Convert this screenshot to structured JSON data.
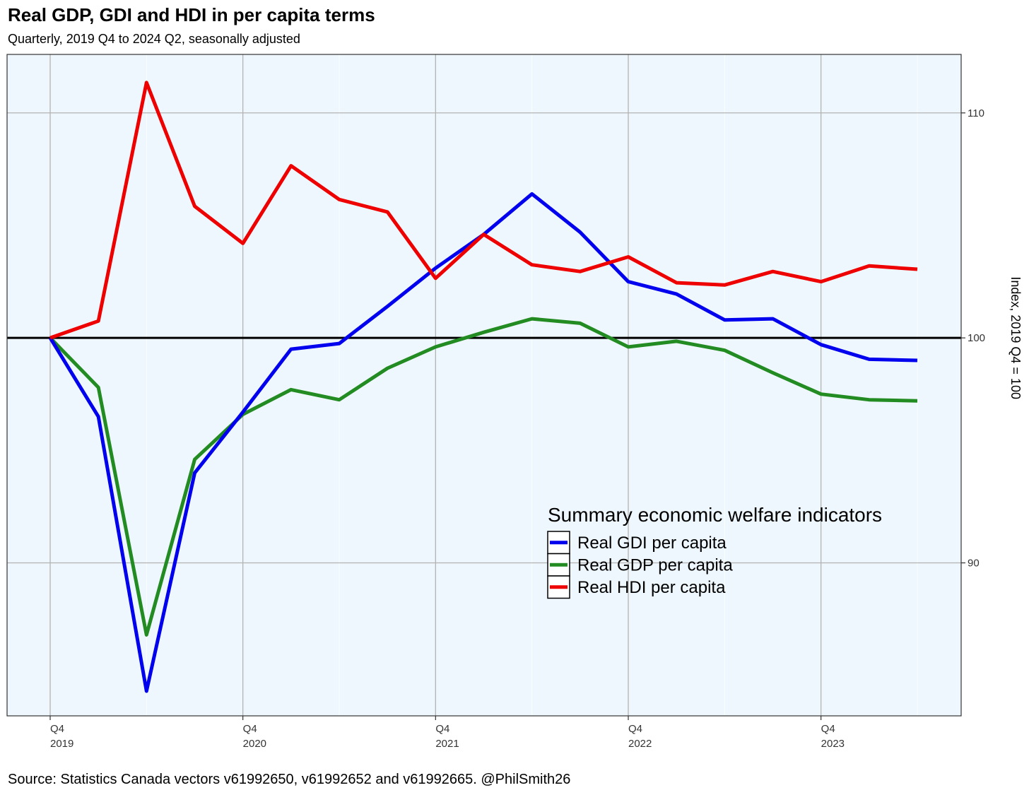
{
  "header": {
    "title": "Real GDP, GDI and HDI in per capita terms",
    "subtitle": "Quarterly, 2019 Q4 to 2024 Q2, seasonally adjusted"
  },
  "footer": {
    "caption": "Source: Statistics Canada vectors v61992650, v61992652  and v61992665. @PhilSmith26"
  },
  "chart_data": {
    "type": "line",
    "title": "Real GDP, GDI and HDI in per capita terms",
    "subtitle": "Quarterly, 2019 Q4 to 2024 Q2, seasonally adjusted",
    "xlabel": "",
    "ylabel": "Index, 2019 Q4 = 100",
    "x": [
      "2019 Q4",
      "2020 Q1",
      "2020 Q2",
      "2020 Q3",
      "2020 Q4",
      "2021 Q1",
      "2021 Q2",
      "2021 Q3",
      "2021 Q4",
      "2022 Q1",
      "2022 Q2",
      "2022 Q3",
      "2022 Q4",
      "2023 Q1",
      "2023 Q2",
      "2023 Q3",
      "2023 Q4",
      "2024 Q1",
      "2024 Q2"
    ],
    "x_ticks": [
      {
        "index": 0,
        "quarter": "Q4",
        "year": "2019"
      },
      {
        "index": 4,
        "quarter": "Q4",
        "year": "2020"
      },
      {
        "index": 8,
        "quarter": "Q4",
        "year": "2021"
      },
      {
        "index": 12,
        "quarter": "Q4",
        "year": "2022"
      },
      {
        "index": 16,
        "quarter": "Q4",
        "year": "2023"
      }
    ],
    "y_ticks": [
      90,
      110
    ],
    "ylim": [
      83.2,
      112.6
    ],
    "y_axis_position": "right",
    "reference_line": 100,
    "grid": true,
    "background": "#EEF7FD",
    "legend": {
      "title": "Summary economic welfare indicators",
      "placement": "bottom-right-inside"
    },
    "series": [
      {
        "name": "Real GDI per capita",
        "color": "#0000EE",
        "values": [
          100.0,
          96.5,
          84.3,
          94.0,
          96.7,
          99.5,
          99.75,
          101.4,
          103.1,
          104.6,
          106.4,
          104.7,
          102.5,
          101.95,
          100.8,
          100.85,
          99.7,
          99.05,
          99.0
        ]
      },
      {
        "name": "Real GDP per capita",
        "color": "#228B22",
        "values": [
          100.0,
          97.8,
          86.8,
          94.6,
          96.6,
          97.7,
          97.25,
          98.65,
          99.6,
          100.25,
          100.85,
          100.65,
          99.6,
          99.85,
          99.45,
          98.45,
          97.5,
          97.25,
          97.2
        ]
      },
      {
        "name": "Real HDI per capita",
        "color": "#EE0000",
        "values": [
          100.0,
          100.75,
          111.35,
          105.85,
          104.2,
          107.65,
          106.15,
          105.6,
          102.65,
          104.6,
          103.25,
          102.95,
          103.6,
          102.45,
          102.35,
          102.95,
          102.5,
          103.2,
          103.05
        ]
      }
    ]
  }
}
